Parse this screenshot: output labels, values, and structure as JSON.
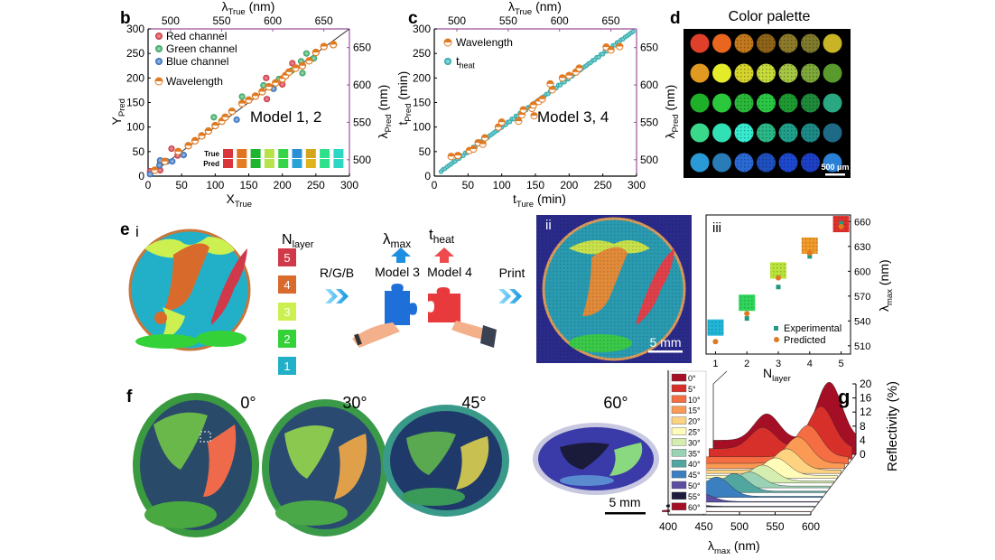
{
  "panel_labels": {
    "b": "b",
    "c": "c",
    "d": "d",
    "e": "e",
    "f": "f",
    "g": "g",
    "e_i": "i",
    "e_ii": "ii",
    "e_iii": "iii"
  },
  "colors": {
    "axis_frame": "#9b4f9e",
    "orange": "#e07a22",
    "teal": "#22b3b3",
    "red": "#d9474f",
    "green": "#3aa86b",
    "blue": "#3a7cc4"
  },
  "chart_data": [
    {
      "id": "b",
      "type": "scatter",
      "xlabel": "X",
      "xlabel_sub": "True",
      "ylabel": "Y",
      "ylabel_sub": "Pred",
      "top_label": "λ",
      "top_label_sub": "True",
      "top_label_unit": " (nm)",
      "right_label": "λ",
      "right_label_sub": "Pred",
      "right_label_unit": " (nm)",
      "xlim": [
        0,
        300
      ],
      "ylim": [
        0,
        300
      ],
      "top_lim": [
        478,
        675
      ],
      "right_lim": [
        478,
        675
      ],
      "xticks": [
        "0",
        "50",
        "100",
        "150",
        "200",
        "250",
        "300"
      ],
      "yticks": [
        "0",
        "50",
        "100",
        "150",
        "200",
        "250",
        "300"
      ],
      "top_ticks": [
        "500",
        "550",
        "600",
        "650"
      ],
      "right_ticks": [
        "500",
        "550",
        "600",
        "650"
      ],
      "annotation": "Model 1, 2",
      "swatch_labels": [
        "True",
        "Pred"
      ],
      "swatches_true": [
        "#d9363c",
        "#e0731f",
        "#1fb52c",
        "#b8e24a",
        "#38d447",
        "#2a8fd6",
        "#d4a51c",
        "#2fe08a",
        "#2ed7c4"
      ],
      "swatches_pred": [
        "#d9363c",
        "#e37c22",
        "#1fb52c",
        "#b8e24a",
        "#38d447",
        "#2aa3d6",
        "#e0b21c",
        "#2fe08a",
        "#2ed7c4"
      ],
      "series": [
        {
          "name": "Red  channel",
          "color": "#d9474f",
          "points": [
            [
              3,
              10
            ],
            [
              18,
              12
            ],
            [
              35,
              56
            ],
            [
              44,
              42
            ],
            [
              176,
              200
            ],
            [
              177,
              157
            ],
            [
              200,
              187
            ],
            [
              215,
              230
            ]
          ]
        },
        {
          "name": "Green channel",
          "color": "#3aa86b",
          "points": [
            [
              18,
              28
            ],
            [
              98,
              120
            ],
            [
              140,
              162
            ],
            [
              172,
              185
            ],
            [
              195,
              198
            ],
            [
              214,
              215
            ],
            [
              228,
              234
            ],
            [
              236,
              250
            ],
            [
              230,
              210
            ],
            [
              247,
              240
            ]
          ]
        },
        {
          "name": "Blue channel",
          "color": "#3a7cc4",
          "points": [
            [
              3,
              4
            ],
            [
              17,
              22
            ],
            [
              18,
              32
            ],
            [
              28,
              30
            ],
            [
              36,
              30
            ],
            [
              53,
              43
            ],
            [
              132,
              115
            ],
            [
              187,
              178
            ],
            [
              205,
              205
            ]
          ]
        },
        {
          "name": "Wavelength",
          "color": "#e07a22",
          "points": [
            [
              10,
              12
            ],
            [
              25,
              30
            ],
            [
              45,
              50
            ],
            [
              60,
              62
            ],
            [
              70,
              72
            ],
            [
              80,
              82
            ],
            [
              90,
              92
            ],
            [
              100,
              103
            ],
            [
              110,
              112
            ],
            [
              115,
              120
            ],
            [
              125,
              132
            ],
            [
              140,
              148
            ],
            [
              150,
              155
            ],
            [
              160,
              163
            ],
            [
              170,
              172
            ],
            [
              180,
              182
            ],
            [
              190,
              190
            ],
            [
              200,
              198
            ],
            [
              205,
              205
            ],
            [
              210,
              212
            ],
            [
              220,
              220
            ],
            [
              230,
              225
            ],
            [
              240,
              235
            ],
            [
              250,
              252
            ],
            [
              262,
              264
            ],
            [
              276,
              268
            ]
          ]
        }
      ]
    },
    {
      "id": "c",
      "type": "scatter",
      "xlabel": "t",
      "xlabel_sub": "Ture",
      "xlabel_unit": " (min)",
      "ylabel": "t",
      "ylabel_sub": "Pred",
      "ylabel_unit": " (min)",
      "top_label": "λ",
      "top_label_sub": "True",
      "top_label_unit": " (nm)",
      "right_label": "λ",
      "right_label_sub": "Pred",
      "right_label_unit": " (nm)",
      "xlim": [
        0,
        300
      ],
      "ylim": [
        0,
        300
      ],
      "top_lim": [
        478,
        675
      ],
      "right_lim": [
        478,
        675
      ],
      "xticks": [
        "0",
        "50",
        "100",
        "150",
        "200",
        "250",
        "300"
      ],
      "yticks": [
        "0",
        "50",
        "100",
        "150",
        "200",
        "250",
        "300"
      ],
      "top_ticks": [
        "500",
        "550",
        "600",
        "650"
      ],
      "right_ticks": [
        "500",
        "550",
        "600",
        "650"
      ],
      "annotation": "Model 3, 4",
      "series": [
        {
          "name": "Wavelength",
          "color": "#e07a22",
          "points": [
            [
              25,
              40
            ],
            [
              35,
              42
            ],
            [
              52,
              52
            ],
            [
              58,
              55
            ],
            [
              65,
              68
            ],
            [
              72,
              65
            ],
            [
              75,
              78
            ],
            [
              95,
              100
            ],
            [
              100,
              110
            ],
            [
              125,
              112
            ],
            [
              130,
              125
            ],
            [
              132,
              135
            ],
            [
              145,
              138
            ],
            [
              147,
              145
            ],
            [
              148,
              123
            ],
            [
              155,
              152
            ],
            [
              160,
              157
            ],
            [
              172,
              188
            ],
            [
              175,
              176
            ],
            [
              190,
              200
            ],
            [
              200,
              205
            ],
            [
              210,
              212
            ],
            [
              215,
              220
            ],
            [
              255,
              263
            ],
            [
              262,
              257
            ],
            [
              275,
              264
            ]
          ]
        },
        {
          "name": "t",
          "name_sub": "heat",
          "color": "#22b3b3",
          "range": [
            10,
            296
          ]
        }
      ]
    },
    {
      "id": "e-iii",
      "type": "scatter",
      "xlabel": "N",
      "xlabel_sub": "layer",
      "ylabel": "λ",
      "ylabel_sub": "max",
      "ylabel_unit": " (nm)",
      "xlim": [
        0.7,
        5.3
      ],
      "ylim": [
        500,
        668
      ],
      "xticks": [
        "1",
        "2",
        "3",
        "4",
        "5"
      ],
      "yticks": [
        "510",
        "540",
        "570",
        "600",
        "630",
        "660"
      ],
      "legend_position": "bottom-right",
      "series": [
        {
          "name": "Experimental",
          "color": "#1f9a80",
          "marker": "square",
          "x": [
            2,
            3,
            4,
            5
          ],
          "y": [
            543,
            581,
            618,
            658
          ]
        },
        {
          "name": "Predicted",
          "color": "#e07a22",
          "marker": "circle",
          "x": [
            1,
            2,
            3,
            4,
            5
          ],
          "y": [
            515,
            549,
            592,
            622,
            654
          ]
        }
      ],
      "patch_colors": [
        "#22b5d6",
        "#2fd45a",
        "#b9e33a",
        "#ef9a2a",
        "#e0302c"
      ]
    },
    {
      "id": "g",
      "type": "area",
      "xlabel": "λ",
      "xlabel_sub": "max",
      "xlabel_unit": " (nm)",
      "zlabel": "Reflectivity (%)",
      "xlim": [
        400,
        600
      ],
      "zlim": [
        0,
        20
      ],
      "xticks": [
        "400",
        "450",
        "500",
        "550",
        "600"
      ],
      "zticks": [
        "0",
        "4",
        "8",
        "12",
        "16",
        "20"
      ],
      "series": [
        {
          "name": "0°",
          "color": "#a50f26",
          "peaks": [
            [
              500,
              7.5
            ],
            [
              570,
              16.5
            ]
          ],
          "base": 4
        },
        {
          "name": "5°",
          "color": "#d7302a",
          "peaks": [
            [
              500,
              6
            ],
            [
              565,
              12
            ]
          ],
          "base": 3
        },
        {
          "name": "10°",
          "color": "#f46d43",
          "peaks": [
            [
              555,
              9
            ]
          ],
          "base": 2
        },
        {
          "name": "15°",
          "color": "#fb9a55",
          "peaks": [
            [
              548,
              7.5
            ]
          ],
          "base": 1.5
        },
        {
          "name": "20°",
          "color": "#fdd382",
          "peaks": [
            [
              540,
              6
            ]
          ],
          "base": 1
        },
        {
          "name": "25°",
          "color": "#fffbb8",
          "peaks": [
            [
              532,
              5
            ]
          ],
          "base": 0.8
        },
        {
          "name": "30°",
          "color": "#d6edb0",
          "peaks": [
            [
              522,
              4.5
            ]
          ],
          "base": 0.6
        },
        {
          "name": "35°",
          "color": "#99d2b4",
          "peaks": [
            [
              512,
              4
            ]
          ],
          "base": 0.5
        },
        {
          "name": "40°",
          "color": "#52a6a0",
          "peaks": [
            [
              500,
              5
            ]
          ],
          "base": 0.4
        },
        {
          "name": "45°",
          "color": "#3b7fc0",
          "peaks": [
            [
              485,
              5.5
            ]
          ],
          "base": 0.3
        },
        {
          "name": "50°",
          "color": "#5b4da0",
          "peaks": [
            [
              470,
              2.5
            ]
          ],
          "base": 0.2
        },
        {
          "name": "55°",
          "color": "#1d1b3d",
          "peaks": [
            [
              460,
              1
            ]
          ],
          "base": 0.2
        },
        {
          "name": "60°",
          "color": "#a50f26",
          "peaks": [
            [
              455,
              0.5
            ]
          ],
          "base": 0.1
        }
      ]
    }
  ],
  "panel_d": {
    "title": "Color palette",
    "scale_bar": "500 μm",
    "dots": [
      [
        "#e0402a",
        "#e8661e",
        "#c4781c",
        "#8f6418",
        "#8c7a2a",
        "#7f7a2c",
        "#c9b426"
      ],
      [
        "#e09a22",
        "#e4ec2a",
        "#d6d42c",
        "#c6da3a",
        "#a6c644",
        "#7ea83a",
        "#5a9a2c"
      ],
      [
        "#1fb02a",
        "#2ac83a",
        "#2ab83a",
        "#2ac844",
        "#1e9a32",
        "#1e8a3a",
        "#2aa882"
      ],
      [
        "#3ad88a",
        "#32e0b6",
        "#36ecd0",
        "#2ab886",
        "#20a08a",
        "#1e8a86",
        "#1e6a86"
      ],
      [
        "#2a9ad6",
        "#2a7cb6",
        "#2a6ad6",
        "#1e50c0",
        "#1e48d0",
        "#1e40c6",
        "#2a80d6"
      ]
    ]
  },
  "panel_e": {
    "n_layer": "N",
    "n_layer_sub": "layer",
    "layers": [
      {
        "label": "5",
        "color": "#d0394a"
      },
      {
        "label": "4",
        "color": "#d86a2c"
      },
      {
        "label": "3",
        "color": "#ccf050"
      },
      {
        "label": "2",
        "color": "#34d238"
      },
      {
        "label": "1",
        "color": "#22b0c8"
      }
    ],
    "rgb_label": "R/G/B",
    "lambda_label": "λ",
    "lambda_sub": "max",
    "theat_label": "t",
    "theat_sub": "heat",
    "model3": "Model 3",
    "model4": "Model 4",
    "print_label": "Print",
    "scale_bar": "5 mm"
  },
  "panel_f": {
    "angles": [
      "0°",
      "30°",
      "45°",
      "60°"
    ],
    "scale_bar": "5 mm"
  }
}
